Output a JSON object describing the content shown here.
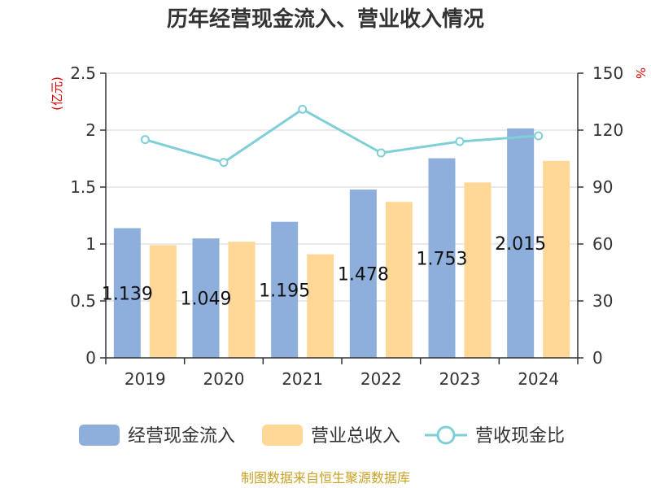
{
  "chart_data": {
    "type": "bar",
    "title": "历年经营现金流入、营业收入情况",
    "categories": [
      "2019",
      "2020",
      "2021",
      "2022",
      "2023",
      "2024"
    ],
    "series": [
      {
        "name": "经营现金流入",
        "type": "bar",
        "axis": "left",
        "color": "#8eaedc",
        "values": [
          1.139,
          1.049,
          1.195,
          1.478,
          1.753,
          2.015
        ]
      },
      {
        "name": "营业总收入",
        "type": "bar",
        "axis": "left",
        "color": "#ffd797",
        "values": [
          0.99,
          1.02,
          0.91,
          1.37,
          1.54,
          1.73
        ]
      },
      {
        "name": "营收现金比",
        "type": "line",
        "axis": "right",
        "color": "#7fd0d6",
        "values": [
          115,
          103,
          131,
          108,
          114,
          117
        ]
      }
    ],
    "data_labels": [
      "1.139",
      "1.049",
      "1.195",
      "1.478",
      "1.753",
      "2.015"
    ],
    "left_axis": {
      "unit": "(亿元)",
      "ylim": [
        0,
        2.5
      ],
      "ticks": [
        "0",
        "0.5",
        "1",
        "1.5",
        "2",
        "2.5"
      ]
    },
    "right_axis": {
      "unit": "%",
      "ylim": [
        0,
        150
      ],
      "ticks": [
        "0",
        "30",
        "60",
        "90",
        "120",
        "150"
      ]
    },
    "grid": true,
    "legend_position": "bottom",
    "source": "制图数据来自恒生聚源数据库"
  }
}
